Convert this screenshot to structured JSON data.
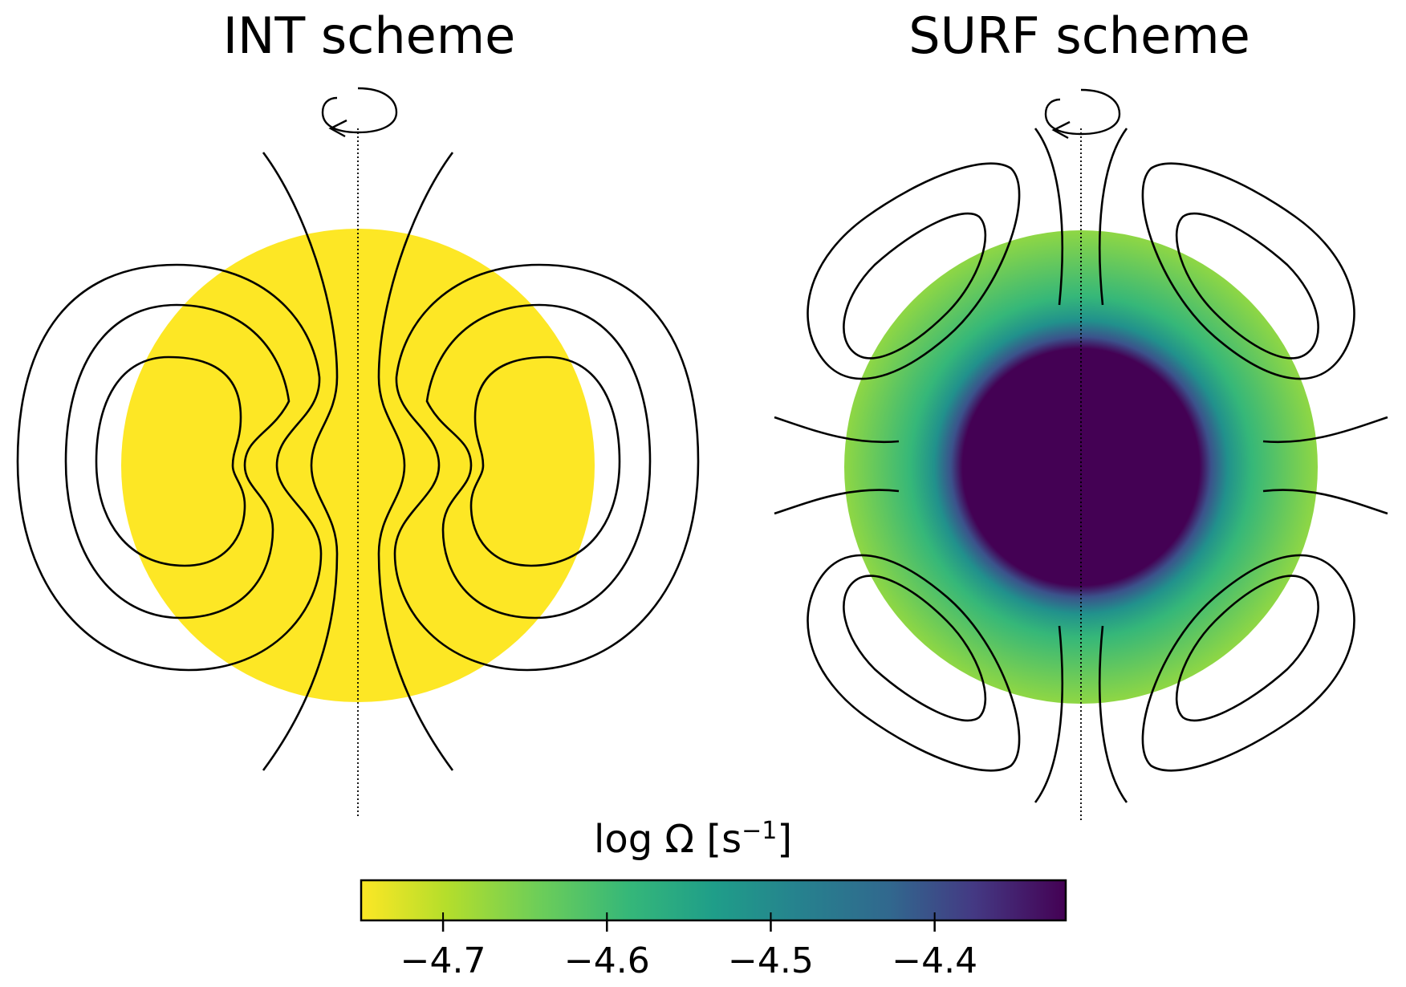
{
  "panels": [
    {
      "title": "INT scheme",
      "fill_color": "#fde725"
    },
    {
      "title": "SURF scheme",
      "core_color": "#440154",
      "outer_color": "#7ad151",
      "mid_color": "#22a884"
    }
  ],
  "colorbar": {
    "label_main": "log Ω [s",
    "label_exp": "−1",
    "label_close": "]",
    "range": [
      -4.75,
      -4.32
    ],
    "ticks": [
      {
        "value": -4.7,
        "label": "−4.7"
      },
      {
        "value": -4.6,
        "label": "−4.6"
      },
      {
        "value": -4.5,
        "label": "−4.5"
      },
      {
        "value": -4.4,
        "label": "−4.4"
      }
    ],
    "colormap": "viridis (reversed)"
  }
}
